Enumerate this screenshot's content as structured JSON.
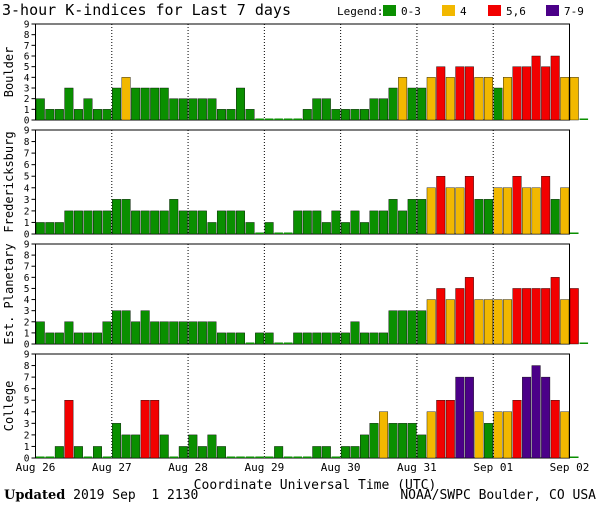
{
  "chart_data": {
    "type": "bar",
    "title": "3-hour K-indices for Last 7 days",
    "xlabel": "Coordinate Universal Time (UTC)",
    "ylim": [
      0,
      9
    ],
    "y_ticks": [
      "0",
      "1",
      "2",
      "3",
      "4",
      "5",
      "6",
      "7",
      "8",
      "9"
    ],
    "x_tick_labels": [
      "Aug 26",
      "Aug 27",
      "Aug 28",
      "Aug 29",
      "Aug 30",
      "Aug 31",
      "Sep 01",
      "Sep 02"
    ],
    "bins_per_day": 8,
    "legend": {
      "label": "Legend:",
      "items": [
        {
          "label": "0-3",
          "color": "#0a8f00"
        },
        {
          "label": "4",
          "color": "#f2b800"
        },
        {
          "label": "5,6",
          "color": "#f20000"
        },
        {
          "label": "7-9",
          "color": "#4b0088"
        }
      ]
    },
    "panels": [
      {
        "name": "Boulder",
        "values": [
          2,
          1,
          1,
          3,
          1,
          2,
          1,
          1,
          3,
          4,
          3,
          3,
          3,
          3,
          2,
          2,
          2,
          2,
          2,
          1,
          1,
          3,
          1,
          0,
          0,
          0,
          0,
          0,
          1,
          2,
          2,
          1,
          1,
          1,
          1,
          2,
          2,
          3,
          4,
          3,
          3,
          4,
          5,
          4,
          5,
          5,
          4,
          4,
          3,
          4,
          5,
          5,
          6,
          5,
          6,
          4,
          4,
          0
        ]
      },
      {
        "name": "Fredericksburg",
        "values": [
          1,
          1,
          1,
          2,
          2,
          2,
          2,
          2,
          3,
          3,
          2,
          2,
          2,
          2,
          3,
          2,
          2,
          2,
          1,
          2,
          2,
          2,
          1,
          0,
          1,
          0,
          0,
          2,
          2,
          2,
          1,
          2,
          1,
          2,
          1,
          2,
          2,
          3,
          2,
          3,
          3,
          4,
          5,
          4,
          4,
          5,
          3,
          3,
          4,
          4,
          5,
          4,
          4,
          5,
          3,
          4,
          0
        ]
      },
      {
        "name": "Est. Planetary",
        "values": [
          2,
          1,
          1,
          2,
          1,
          1,
          1,
          2,
          3,
          3,
          2,
          3,
          2,
          2,
          2,
          2,
          2,
          2,
          2,
          1,
          1,
          1,
          0,
          1,
          1,
          0,
          0,
          1,
          1,
          1,
          1,
          1,
          1,
          2,
          1,
          1,
          1,
          3,
          3,
          3,
          3,
          4,
          5,
          4,
          5,
          6,
          4,
          4,
          4,
          4,
          5,
          5,
          5,
          5,
          6,
          4,
          5,
          0
        ]
      },
      {
        "name": "College",
        "values": [
          0,
          0,
          1,
          5,
          1,
          0,
          1,
          0,
          3,
          2,
          2,
          5,
          5,
          2,
          0,
          1,
          2,
          1,
          2,
          1,
          0,
          0,
          0,
          0,
          0,
          1,
          0,
          0,
          0,
          1,
          1,
          0,
          1,
          1,
          2,
          3,
          4,
          3,
          3,
          3,
          2,
          4,
          5,
          5,
          7,
          7,
          4,
          3,
          4,
          4,
          5,
          7,
          8,
          7,
          5,
          4,
          0
        ]
      }
    ]
  },
  "footer": {
    "updated_label": "Updated",
    "updated_value": " 2019 Sep  1 2130",
    "credit": "NOAA/SWPC Boulder, CO USA"
  }
}
